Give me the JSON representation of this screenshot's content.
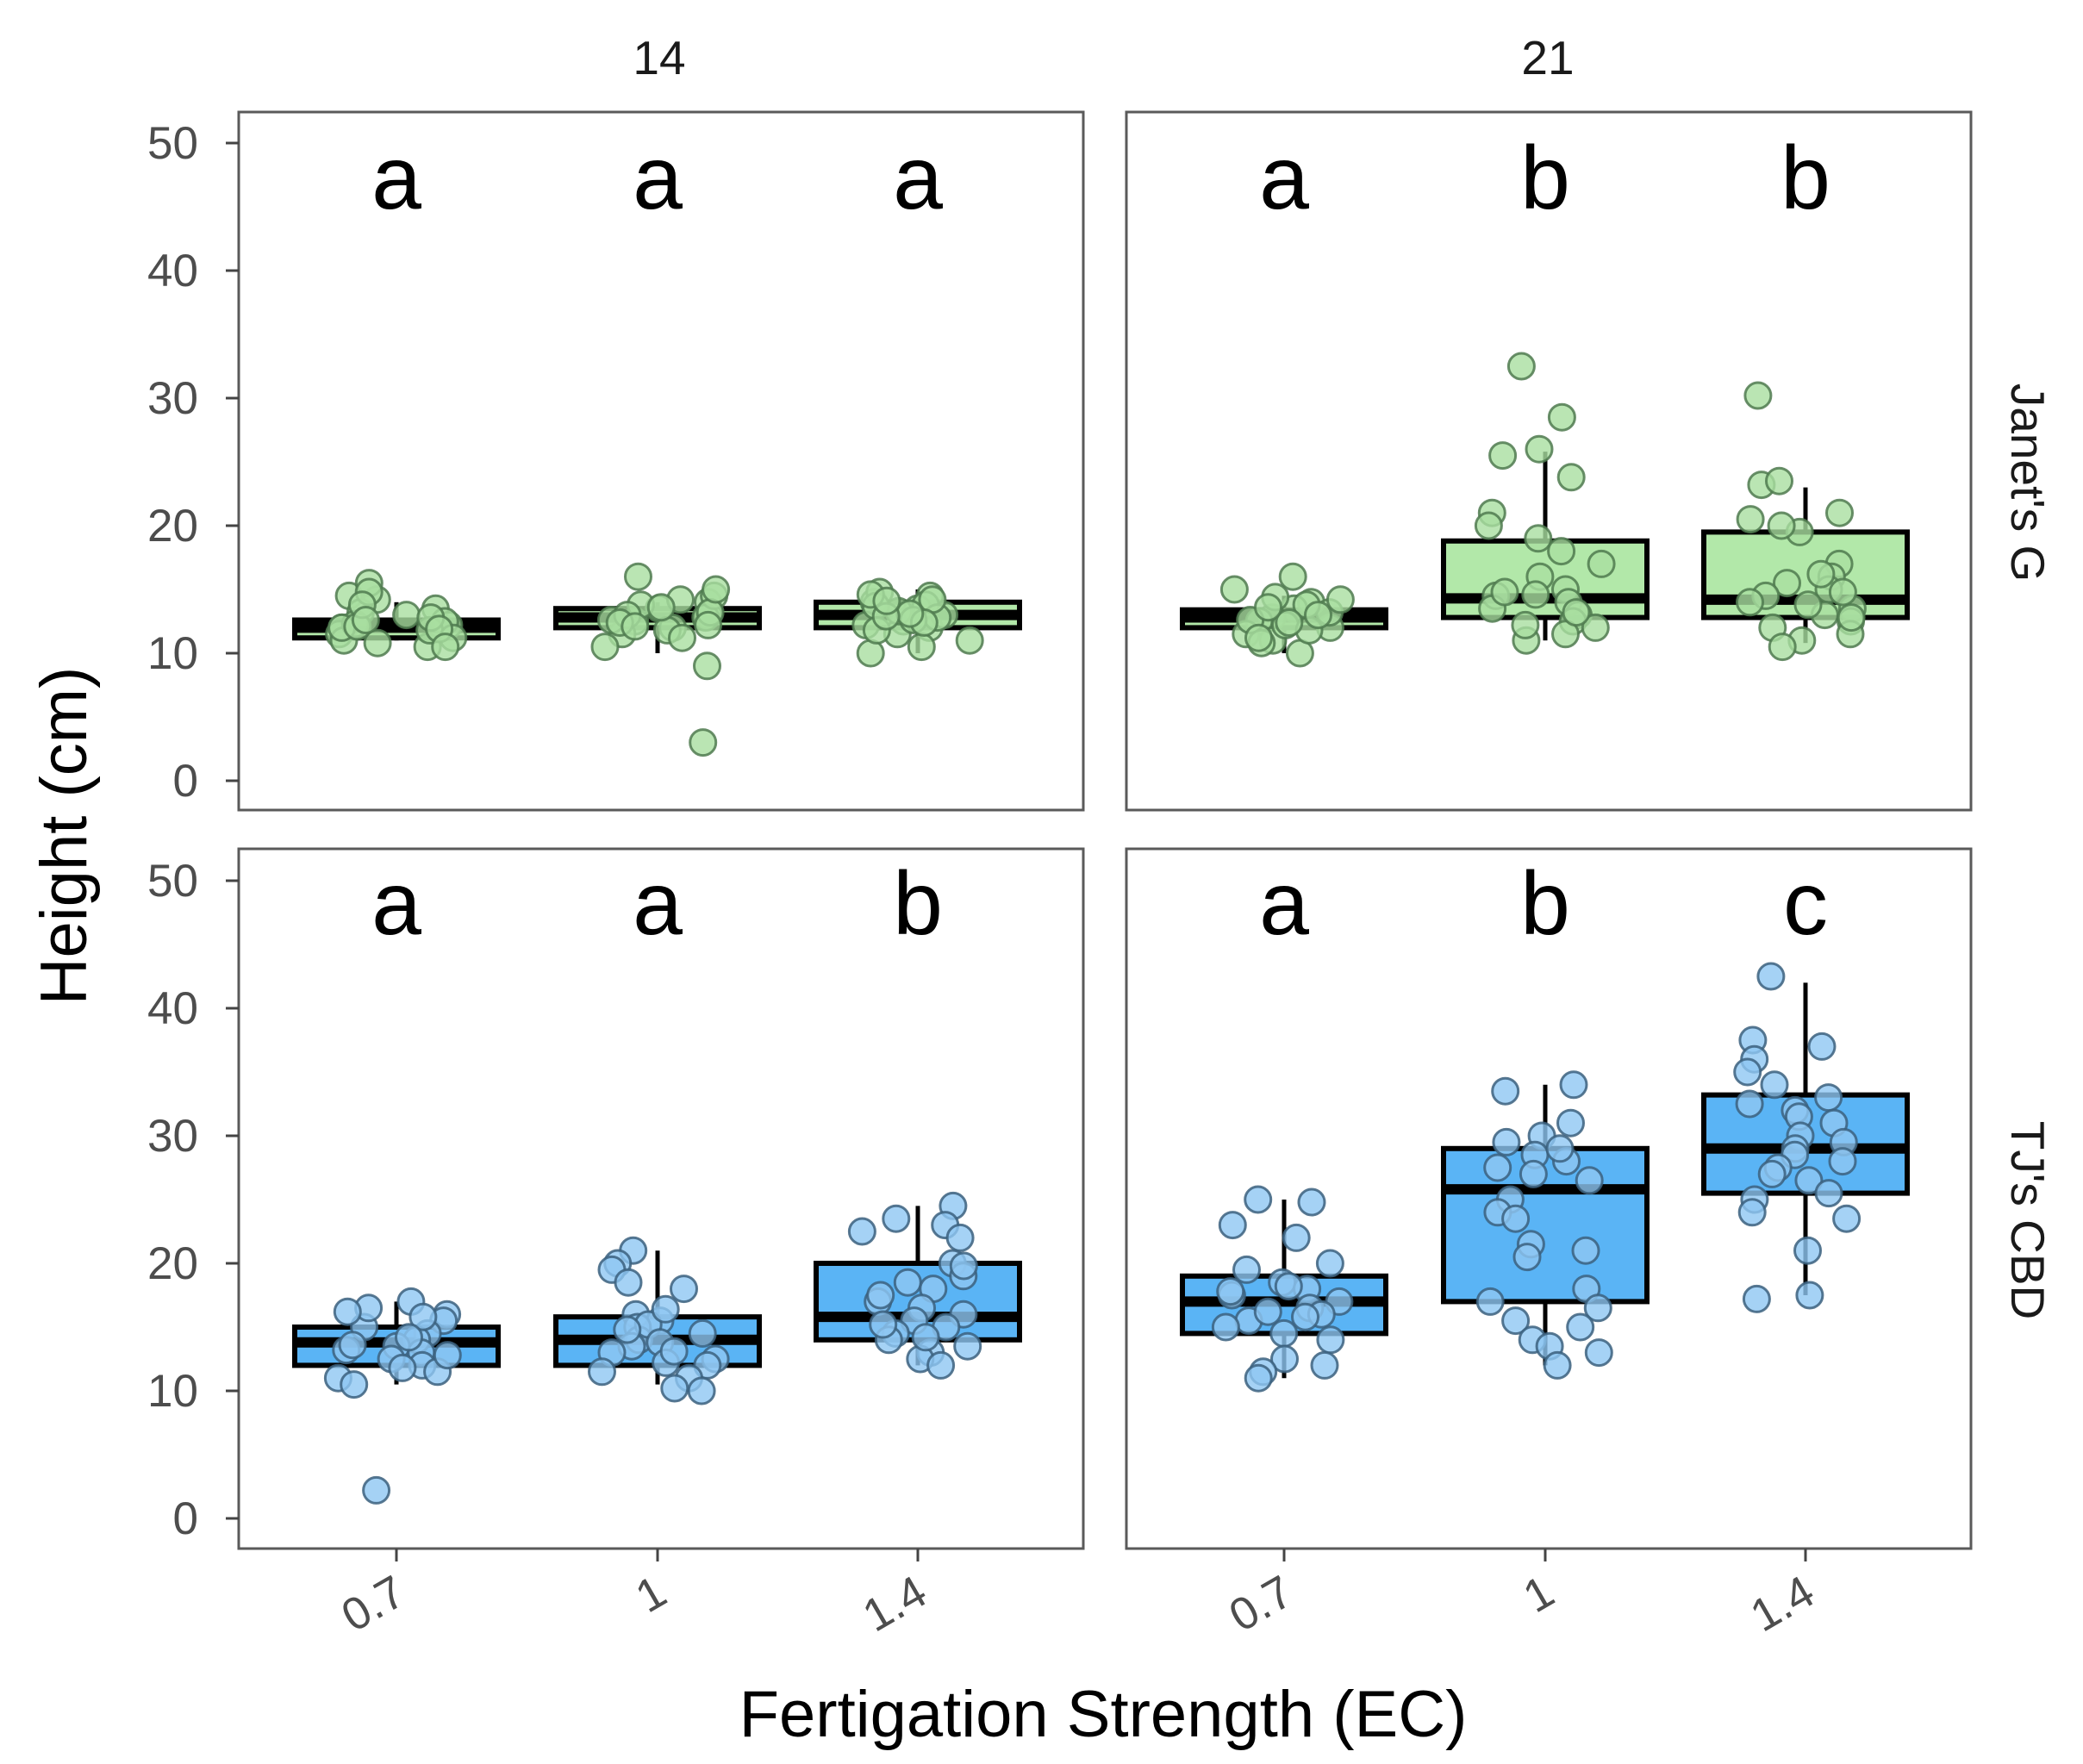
{
  "chart_data": {
    "type": "box",
    "title": "",
    "xlabel": "Fertigation Strength (EC)",
    "ylabel": "Height (cm)",
    "ylim": [
      -2,
      52
    ],
    "y_ticks": [
      0,
      10,
      20,
      30,
      40,
      50
    ],
    "x_categories": [
      "0.7",
      "1",
      "1.4"
    ],
    "column_facets": [
      "14",
      "21"
    ],
    "row_facets": [
      "Janet's G",
      "TJ's CBD"
    ],
    "colors": {
      "Janet's G": {
        "fill": "#b2e8a9",
        "point": "#a9dea0",
        "point_stroke": "#4f7a4f"
      },
      "TJ's CBD": {
        "fill": "#5ab4f5",
        "point": "#8ec7f2",
        "point_stroke": "#3b607e"
      }
    },
    "panels": [
      {
        "row": "Janet's G",
        "col": "14",
        "groups": [
          {
            "x": "0.7",
            "letter": "a",
            "q1": 11.2,
            "median": 12.0,
            "q3": 12.6,
            "whisker_low": 11.0,
            "whisker_high": 14.0,
            "points": [
              14.5,
              13.5,
              12.2,
              12.0,
              11.5,
              11.0,
              10.5,
              13.0,
              12.5,
              11.8,
              14.2,
              13.2,
              15.5,
              12.8,
              11.2,
              12.3,
              10.8,
              12.0,
              14.8,
              12.1,
              11.9,
              13.8,
              10.5,
              12.6
            ]
          },
          {
            "x": "1",
            "letter": "a",
            "q1": 12.0,
            "median": 12.8,
            "q3": 13.5,
            "whisker_low": 10.0,
            "whisker_high": 14.0,
            "points": [
              14.0,
              13.0,
              12.5,
              12.0,
              13.5,
              11.5,
              12.8,
              16.0,
              14.5,
              13.2,
              12.2,
              10.5,
              9.0,
              3.0,
              13.8,
              12.6,
              14.2,
              11.8,
              13.0,
              12.4,
              15.0,
              12.1,
              13.6,
              11.2
            ]
          },
          {
            "x": "1.4",
            "letter": "a",
            "q1": 12.0,
            "median": 13.0,
            "q3": 14.0,
            "whisker_low": 10.0,
            "whisker_high": 15.0,
            "points": [
              14.5,
              13.5,
              12.5,
              12.0,
              11.5,
              13.0,
              14.0,
              10.5,
              12.2,
              13.8,
              14.8,
              12.8,
              11.0,
              13.3,
              14.2,
              12.6,
              10.0,
              13.7,
              12.4,
              14.6,
              11.8,
              13.1,
              12.9,
              14.1
            ]
          }
        ]
      },
      {
        "row": "Janet's G",
        "col": "21",
        "groups": [
          {
            "x": "0.7",
            "letter": "a",
            "q1": 12.0,
            "median": 12.8,
            "q3": 13.4,
            "whisker_low": 10.0,
            "whisker_high": 14.5,
            "points": [
              16.0,
              15.0,
              14.0,
              13.5,
              12.8,
              12.5,
              12.0,
              11.5,
              11.0,
              10.0,
              13.2,
              14.2,
              12.2,
              11.8,
              13.8,
              12.6,
              10.8,
              14.4,
              13.0,
              12.4,
              11.2,
              13.6
            ]
          },
          {
            "x": "1",
            "letter": "b",
            "q1": 12.8,
            "median": 14.3,
            "q3": 18.8,
            "whisker_low": 11.0,
            "whisker_high": 25.8,
            "points": [
              32.5,
              28.5,
              25.5,
              26.0,
              23.8,
              21.0,
              20.0,
              19.0,
              18.0,
              16.0,
              15.0,
              14.5,
              14.0,
              13.5,
              13.0,
              12.5,
              12.0,
              11.5,
              11.0,
              14.8,
              13.2,
              17.0,
              12.2,
              14.6
            ]
          },
          {
            "x": "1.4",
            "letter": "b",
            "q1": 12.8,
            "median": 14.2,
            "q3": 19.5,
            "whisker_low": 10.8,
            "whisker_high": 23.0,
            "points": [
              30.2,
              23.2,
              23.5,
              21.0,
              20.5,
              19.5,
              17.0,
              16.0,
              15.5,
              15.0,
              14.5,
              14.0,
              13.5,
              13.0,
              12.5,
              12.0,
              11.5,
              11.0,
              10.5,
              20.0,
              14.8,
              16.2,
              12.8,
              13.8
            ]
          }
        ]
      },
      {
        "row": "TJ's CBD",
        "col": "14",
        "groups": [
          {
            "x": "0.7",
            "letter": "a",
            "q1": 12.0,
            "median": 13.8,
            "q3": 15.0,
            "whisker_low": 10.5,
            "whisker_high": 17.0,
            "points": [
              17.0,
              16.0,
              15.5,
              15.0,
              14.5,
              14.0,
              13.5,
              13.0,
              12.5,
              12.0,
              11.5,
              11.0,
              10.5,
              2.2,
              16.5,
              15.8,
              13.2,
              12.8,
              14.2,
              11.8,
              16.2,
              13.6
            ]
          },
          {
            "x": "1",
            "letter": "a",
            "q1": 12.0,
            "median": 14.0,
            "q3": 15.8,
            "whisker_low": 10.5,
            "whisker_high": 21.0,
            "points": [
              21.0,
              20.0,
              19.5,
              18.5,
              18.0,
              16.0,
              15.5,
              15.0,
              14.5,
              14.0,
              13.5,
              13.0,
              12.5,
              12.0,
              11.5,
              11.0,
              10.0,
              10.2,
              15.2,
              13.8,
              12.2,
              14.8,
              16.4,
              13.1
            ]
          },
          {
            "x": "1.4",
            "letter": "b",
            "q1": 14.0,
            "median": 15.8,
            "q3": 20.0,
            "whisker_low": 12.0,
            "whisker_high": 24.5,
            "points": [
              24.5,
              23.5,
              23.0,
              22.5,
              22.0,
              20.0,
              19.0,
              18.5,
              18.0,
              17.0,
              16.5,
              16.0,
              15.5,
              15.0,
              14.5,
              14.0,
              13.5,
              13.0,
              12.5,
              12.0,
              19.8,
              17.5,
              14.2,
              15.2
            ]
          }
        ]
      },
      {
        "row": "TJ's CBD",
        "col": "21",
        "groups": [
          {
            "x": "0.7",
            "letter": "a",
            "q1": 14.5,
            "median": 17.0,
            "q3": 19.0,
            "whisker_low": 11.0,
            "whisker_high": 25.0,
            "points": [
              25.0,
              24.8,
              23.0,
              22.0,
              20.0,
              19.5,
              18.5,
              18.0,
              17.5,
              17.0,
              16.5,
              16.0,
              15.5,
              15.0,
              14.5,
              14.0,
              12.5,
              12.0,
              11.5,
              11.0,
              17.8,
              16.2,
              18.2,
              15.8
            ]
          },
          {
            "x": "1",
            "letter": "b",
            "q1": 17.0,
            "median": 25.8,
            "q3": 29.0,
            "whisker_low": 12.0,
            "whisker_high": 34.0,
            "points": [
              34.0,
              33.5,
              31.0,
              30.0,
              29.5,
              28.5,
              28.0,
              27.5,
              26.5,
              25.0,
              24.0,
              23.5,
              21.5,
              21.0,
              20.5,
              18.0,
              17.0,
              16.5,
              15.5,
              15.0,
              14.0,
              13.5,
              13.0,
              12.0,
              29.0,
              27.0
            ]
          },
          {
            "x": "1.4",
            "letter": "c",
            "q1": 25.5,
            "median": 29.0,
            "q3": 33.2,
            "whisker_low": 17.5,
            "whisker_high": 42.0,
            "points": [
              42.5,
              37.5,
              37.0,
              36.0,
              35.0,
              34.0,
              33.0,
              32.5,
              32.0,
              31.5,
              31.0,
              30.0,
              29.5,
              29.0,
              28.5,
              28.0,
              27.5,
              27.0,
              26.5,
              25.5,
              25.0,
              24.0,
              23.5,
              21.0,
              17.5,
              17.2
            ]
          }
        ]
      }
    ]
  }
}
